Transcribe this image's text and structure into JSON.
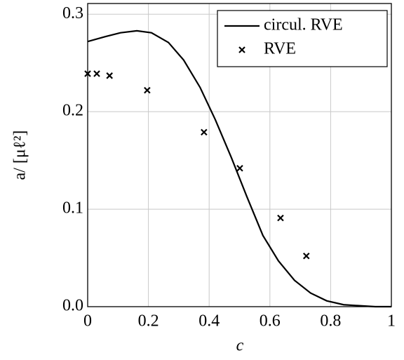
{
  "chart_data": {
    "type": "line",
    "xlabel": "c",
    "ylabel": "a/ [μℓ²]",
    "xlim": [
      0,
      1
    ],
    "ylim": [
      0,
      0.311
    ],
    "xticks": [
      0,
      0.2,
      0.4,
      0.6,
      0.8,
      1
    ],
    "yticks": [
      {
        "value": 0,
        "label": "0.0"
      },
      0.1,
      0.2,
      0.3
    ],
    "grid": true,
    "legend": "upper right",
    "series": [
      {
        "name": "circul. RVE",
        "color": "#000000",
        "style": "line",
        "x": [
          0,
          0.058,
          0.108,
          0.162,
          0.21,
          0.266,
          0.316,
          0.37,
          0.42,
          0.473,
          0.524,
          0.577,
          0.628,
          0.681,
          0.734,
          0.787,
          0.843,
          0.894,
          0.947,
          1
        ],
        "values": [
          0.272,
          0.277,
          0.281,
          0.283,
          0.281,
          0.271,
          0.253,
          0.225,
          0.192,
          0.153,
          0.113,
          0.073,
          0.047,
          0.027,
          0.014,
          0.006,
          0.002,
          0.001,
          0,
          0
        ]
      },
      {
        "name": "RVE",
        "color": "#000000",
        "style": "marker",
        "x": [
          0,
          0.03,
          0.072,
          0.196,
          0.383,
          0.501,
          0.635,
          0.72
        ],
        "values": [
          0.239,
          0.239,
          0.237,
          0.222,
          0.179,
          0.142,
          0.091,
          0.052
        ]
      }
    ]
  }
}
